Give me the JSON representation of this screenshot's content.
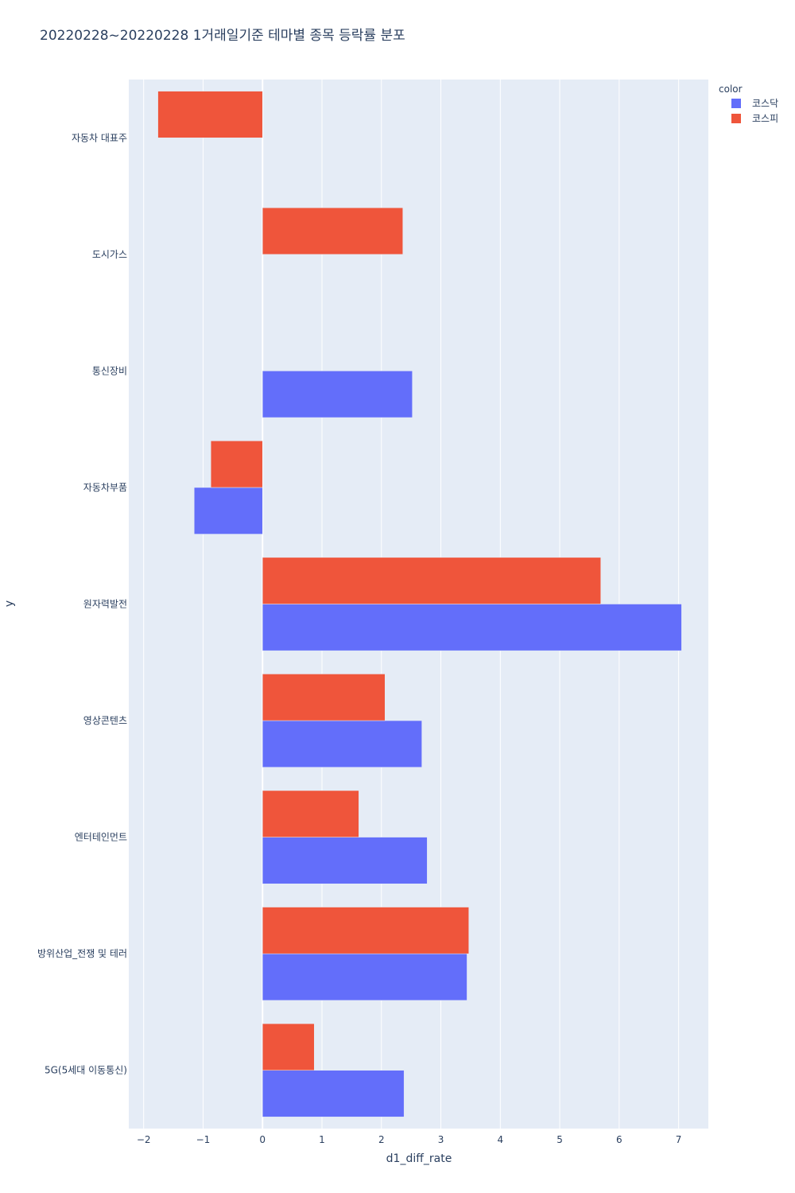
{
  "chart_data": {
    "type": "bar",
    "orientation": "horizontal",
    "barmode": "group",
    "title": "20220228~20220228 1거래일기준 테마별 종목 등락률 분포",
    "xlabel": "d1_diff_rate",
    "ylabel": "y",
    "xlim": [
      -2.25,
      7.5
    ],
    "xticks": [
      -2,
      -1,
      0,
      1,
      2,
      3,
      4,
      5,
      6,
      7
    ],
    "grid": true,
    "legend": {
      "title": "color",
      "position": "top-right"
    },
    "categories": [
      "5G(5세대 이동통신)",
      "방위산업_전쟁 및 테러",
      "엔터테인먼트",
      "영상콘텐츠",
      "원자력발전",
      "자동차부품",
      "통신장비",
      "도시가스",
      "자동차 대표주"
    ],
    "series": [
      {
        "name": "코스닥",
        "color": "#636efa",
        "values": [
          2.38,
          3.44,
          2.77,
          2.68,
          7.05,
          -1.15,
          2.52,
          null,
          null
        ]
      },
      {
        "name": "코스피",
        "color": "#ef553b",
        "values": [
          0.87,
          3.47,
          1.62,
          2.06,
          5.69,
          -0.87,
          null,
          2.36,
          -1.76
        ]
      }
    ]
  }
}
